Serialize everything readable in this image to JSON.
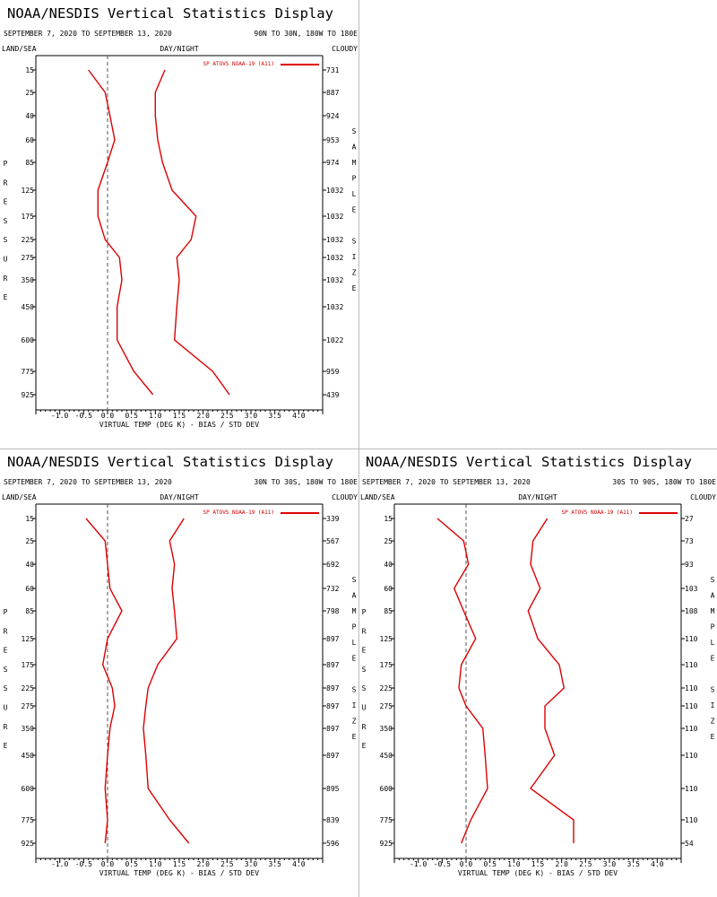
{
  "common": {
    "title": "NOAA/NESDIS Vertical Statistics Display",
    "date_range": "SEPTEMBER 7, 2020 TO SEPTEMBER 13, 2020",
    "land_sea": "LAND/SEA",
    "day_night": "DAY/NIGHT",
    "cloudy": "CLOUDY",
    "pressure_letters": [
      "P",
      "R",
      "E",
      "S",
      "S",
      "U",
      "R",
      "E"
    ],
    "sample_letters": [
      "S",
      "A",
      "M",
      "P",
      "L",
      "E",
      "",
      "S",
      "I",
      "Z",
      "E"
    ],
    "xlabel": "VIRTUAL TEMP (DEG K) - BIAS / STD DEV",
    "legend": "SP ATOVS NOAA-19 (A11)",
    "series_color": "#dd0000",
    "x_ticks": [
      "-1.0",
      "-0.5",
      "0.0",
      "0.5",
      "1.0",
      "1.5",
      "2.0",
      "2.5",
      "3.0",
      "3.5",
      "4.0"
    ],
    "pressure_levels": [
      "15",
      "25",
      "40",
      "60",
      "85",
      "125",
      "175",
      "225",
      "275",
      "350",
      "450",
      "600",
      "775",
      "925"
    ]
  },
  "chart_data": [
    {
      "type": "line",
      "region": "90N TO 30N, 180W TO 180E",
      "xlim": [
        -1.5,
        4.5
      ],
      "pressure": [
        15,
        25,
        40,
        60,
        85,
        125,
        175,
        225,
        275,
        350,
        450,
        600,
        775,
        925
      ],
      "series": [
        {
          "values": [
            -0.4,
            -0.05,
            0.05,
            0.15,
            0.0,
            -0.2,
            -0.2,
            -0.05,
            0.25,
            0.3,
            0.2,
            0.2,
            0.55,
            0.95
          ]
        },
        {
          "values": [
            1.2,
            1.0,
            1.0,
            1.05,
            1.15,
            1.35,
            1.85,
            1.75,
            1.45,
            1.5,
            1.45,
            1.4,
            2.2,
            2.55
          ]
        }
      ],
      "sample_size": [
        "731",
        "887",
        "924",
        "953",
        "974",
        "1032",
        "1032",
        "1032",
        "1032",
        "1032",
        "1032",
        "1022",
        "959",
        "439"
      ]
    },
    {
      "type": "line",
      "region": "30N TO 30S, 180W TO 180E",
      "xlim": [
        -1.5,
        4.5
      ],
      "pressure": [
        15,
        25,
        40,
        60,
        85,
        125,
        175,
        225,
        275,
        350,
        450,
        600,
        775,
        925
      ],
      "series": [
        {
          "values": [
            -0.45,
            -0.05,
            0.0,
            0.05,
            0.3,
            0.0,
            -0.1,
            0.1,
            0.15,
            0.05,
            0.0,
            -0.05,
            0.0,
            -0.05
          ]
        },
        {
          "values": [
            1.6,
            1.3,
            1.4,
            1.35,
            1.4,
            1.45,
            1.05,
            0.85,
            0.8,
            0.75,
            0.8,
            0.85,
            1.3,
            1.7
          ]
        }
      ],
      "sample_size": [
        "339",
        "567",
        "692",
        "732",
        "798",
        "897",
        "897",
        "897",
        "897",
        "897",
        "897",
        "895",
        "839",
        "596"
      ]
    },
    {
      "type": "line",
      "region": "30S TO 90S, 180W TO 180E",
      "xlim": [
        -1.5,
        4.5
      ],
      "pressure": [
        15,
        25,
        40,
        60,
        85,
        125,
        175,
        225,
        275,
        350,
        450,
        600,
        775,
        925
      ],
      "series": [
        {
          "values": [
            -0.6,
            -0.05,
            0.05,
            -0.25,
            -0.05,
            0.2,
            -0.1,
            -0.15,
            0.0,
            0.35,
            0.4,
            0.45,
            0.1,
            -0.1
          ]
        },
        {
          "values": [
            1.7,
            1.4,
            1.35,
            1.55,
            1.3,
            1.5,
            1.95,
            2.05,
            1.65,
            1.65,
            1.85,
            1.35,
            2.25,
            2.25
          ]
        }
      ],
      "sample_size": [
        "27",
        "73",
        "93",
        "103",
        "108",
        "110",
        "110",
        "110",
        "110",
        "110",
        "110",
        "110",
        "110",
        "54"
      ]
    }
  ]
}
